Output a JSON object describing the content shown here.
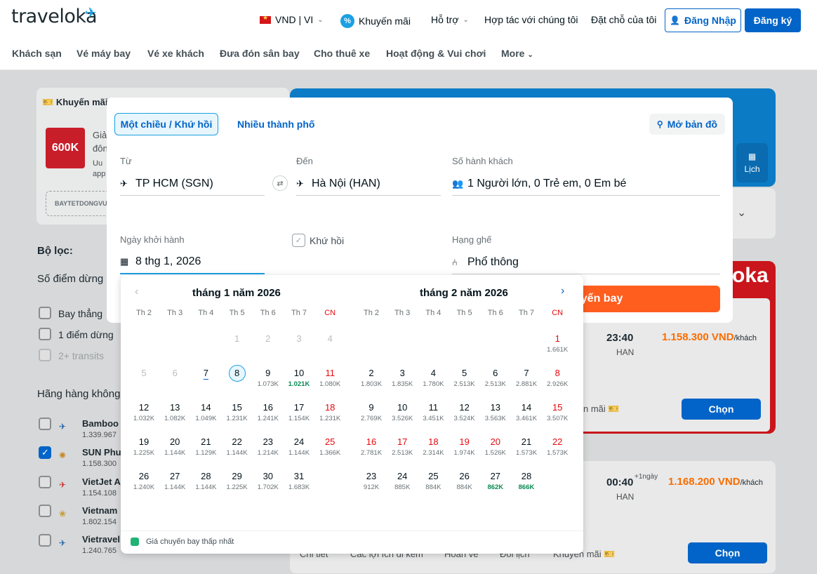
{
  "header": {
    "logo": "traveloka",
    "currency_lang": "VND | VI",
    "promo": "Khuyến mãi",
    "support": "Hỗ trợ",
    "partner": "Hợp tác với chúng tôi",
    "bookings": "Đặt chỗ của tôi",
    "login": "Đăng Nhập",
    "register": "Đăng ký"
  },
  "subnav": [
    "Khách sạn",
    "Vé máy bay",
    "Vé xe khách",
    "Đưa đón sân bay",
    "Cho thuê xe",
    "Hoạt động & Vui chơi",
    "More"
  ],
  "background": {
    "promo_title": "Khuyến mãi",
    "promo_code": "BAYTETDONGVU",
    "promo_badge": "600K",
    "promo_line1": "Giả",
    "promo_line2": "đôn",
    "promo_line3": "Uu",
    "promo_line4": "app",
    "filter_title": "Bộ lọc:",
    "stops_title": "Số điểm dừng",
    "stops": [
      "Bay thẳng",
      "1 điểm dừng",
      "2+ transits"
    ],
    "airlines_title": "Hãng hàng không",
    "airlines": [
      {
        "name": "Bamboo",
        "price": "1.339.967",
        "checked": false
      },
      {
        "name": "SUN Phu",
        "price": "1.158.300",
        "checked": true
      },
      {
        "name": "VietJet A",
        "price": "1.154.108",
        "checked": false
      },
      {
        "name": "Vietnam",
        "price": "1.802.154",
        "checked": false
      },
      {
        "name": "Vietravel",
        "price": "1.240.765",
        "checked": false
      }
    ],
    "calendar_btn": "Lịch",
    "brand_red": "oka",
    "flight1_time": "23:40",
    "flight1_airport": "HAN",
    "flight1_price": "1.158.300 VND",
    "per_pax": "/khách",
    "flight1_promo": "n mãi",
    "flight2_time": "00:40",
    "flight2_plus": "+1ngày",
    "flight2_airport": "HAN",
    "flight2_price": "1.168.200 VND",
    "choose": "Chọn",
    "bottom_tabs": [
      "Chi tiết",
      "Các lợi ích đi kèm",
      "Hoàn vé",
      "Đổi lịch",
      "Khuyến mãi"
    ]
  },
  "search": {
    "tab_oneway": "Một chiều / Khứ hồi",
    "tab_multi": "Nhiều thành phố",
    "map_btn": "Mở bản đồ",
    "from_label": "Từ",
    "from_value": "TP HCM (SGN)",
    "to_label": "Đến",
    "to_value": "Hà Nội (HAN)",
    "pax_label": "Số hành khách",
    "pax_value": "1 Người lớn, 0 Trẻ em, 0 Em bé",
    "date_label": "Ngày khởi hành",
    "date_value": "8 thg 1, 2026",
    "roundtrip_label": "Khứ hồi",
    "class_label": "Hạng ghế",
    "class_value": "Phổ thông",
    "search_btn": "uyến bay"
  },
  "calendar": {
    "weekdays": [
      "Th 2",
      "Th 3",
      "Th 4",
      "Th 5",
      "Th 6",
      "Th 7",
      "CN"
    ],
    "legend": "Giá chuyến bay thấp nhất",
    "months": [
      {
        "title": "tháng 1 năm 2026",
        "start_col": 3,
        "days": [
          {
            "d": "1",
            "p": "",
            "s": "dis"
          },
          {
            "d": "2",
            "p": "",
            "s": "dis"
          },
          {
            "d": "3",
            "p": "",
            "s": "dis"
          },
          {
            "d": "4",
            "p": "",
            "s": "dis"
          },
          {
            "d": "5",
            "p": "",
            "s": "dis"
          },
          {
            "d": "6",
            "p": "",
            "s": "dis"
          },
          {
            "d": "7",
            "p": "",
            "s": "today"
          },
          {
            "d": "8",
            "p": "",
            "s": "sel"
          },
          {
            "d": "9",
            "p": "1.073K",
            "s": ""
          },
          {
            "d": "10",
            "p": "1.021K",
            "s": "low"
          },
          {
            "d": "11",
            "p": "1.080K",
            "s": "sun"
          },
          {
            "d": "12",
            "p": "1.032K",
            "s": ""
          },
          {
            "d": "13",
            "p": "1.082K",
            "s": ""
          },
          {
            "d": "14",
            "p": "1.049K",
            "s": ""
          },
          {
            "d": "15",
            "p": "1.231K",
            "s": ""
          },
          {
            "d": "16",
            "p": "1.241K",
            "s": ""
          },
          {
            "d": "17",
            "p": "1.154K",
            "s": ""
          },
          {
            "d": "18",
            "p": "1.231K",
            "s": "sun"
          },
          {
            "d": "19",
            "p": "1.225K",
            "s": ""
          },
          {
            "d": "20",
            "p": "1.144K",
            "s": ""
          },
          {
            "d": "21",
            "p": "1.129K",
            "s": ""
          },
          {
            "d": "22",
            "p": "1.144K",
            "s": ""
          },
          {
            "d": "23",
            "p": "1.214K",
            "s": ""
          },
          {
            "d": "24",
            "p": "1.144K",
            "s": ""
          },
          {
            "d": "25",
            "p": "1.366K",
            "s": "sun"
          },
          {
            "d": "26",
            "p": "1.240K",
            "s": ""
          },
          {
            "d": "27",
            "p": "1.144K",
            "s": ""
          },
          {
            "d": "28",
            "p": "1.144K",
            "s": ""
          },
          {
            "d": "29",
            "p": "1.225K",
            "s": ""
          },
          {
            "d": "30",
            "p": "1.702K",
            "s": ""
          },
          {
            "d": "31",
            "p": "1.683K",
            "s": ""
          }
        ]
      },
      {
        "title": "tháng 2 năm 2026",
        "start_col": 6,
        "days": [
          {
            "d": "1",
            "p": "1.661K",
            "s": "sun"
          },
          {
            "d": "2",
            "p": "1.803K",
            "s": ""
          },
          {
            "d": "3",
            "p": "1.835K",
            "s": ""
          },
          {
            "d": "4",
            "p": "1.780K",
            "s": ""
          },
          {
            "d": "5",
            "p": "2.513K",
            "s": ""
          },
          {
            "d": "6",
            "p": "2.513K",
            "s": ""
          },
          {
            "d": "7",
            "p": "2.881K",
            "s": ""
          },
          {
            "d": "8",
            "p": "2.926K",
            "s": "sun"
          },
          {
            "d": "9",
            "p": "2.769K",
            "s": ""
          },
          {
            "d": "10",
            "p": "3.526K",
            "s": ""
          },
          {
            "d": "11",
            "p": "3.451K",
            "s": ""
          },
          {
            "d": "12",
            "p": "3.524K",
            "s": ""
          },
          {
            "d": "13",
            "p": "3.563K",
            "s": ""
          },
          {
            "d": "14",
            "p": "3.461K",
            "s": ""
          },
          {
            "d": "15",
            "p": "3.507K",
            "s": "sun"
          },
          {
            "d": "16",
            "p": "2.781K",
            "s": "hol"
          },
          {
            "d": "17",
            "p": "2.513K",
            "s": "hol"
          },
          {
            "d": "18",
            "p": "2.314K",
            "s": "hol"
          },
          {
            "d": "19",
            "p": "1.974K",
            "s": "hol"
          },
          {
            "d": "20",
            "p": "1.526K",
            "s": "hol"
          },
          {
            "d": "21",
            "p": "1.573K",
            "s": ""
          },
          {
            "d": "22",
            "p": "1.573K",
            "s": "sun"
          },
          {
            "d": "23",
            "p": "912K",
            "s": ""
          },
          {
            "d": "24",
            "p": "885K",
            "s": ""
          },
          {
            "d": "25",
            "p": "884K",
            "s": ""
          },
          {
            "d": "26",
            "p": "884K",
            "s": ""
          },
          {
            "d": "27",
            "p": "862K",
            "s": "low"
          },
          {
            "d": "28",
            "p": "866K",
            "s": "low"
          }
        ]
      }
    ]
  },
  "colors": {
    "primary": "#0264c8",
    "accent": "#1ba0e2",
    "search": "#ff5e1f",
    "holiday": "#e7090e",
    "lowest": "#21b373"
  }
}
